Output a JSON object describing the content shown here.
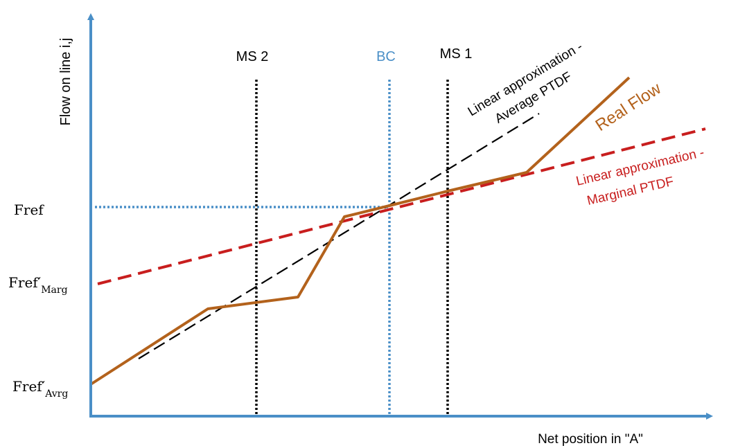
{
  "axes": {
    "y_label": "Flow on line i,j",
    "x_label": "Net position in \"A\""
  },
  "y_ticks": [
    {
      "base": "Fref",
      "sub": ""
    },
    {
      "base": "Fref′",
      "sub": "Marg"
    },
    {
      "base": "Fref′",
      "sub": "Avrg"
    }
  ],
  "vertical_markers": [
    {
      "label": "MS 2",
      "color": "#000000"
    },
    {
      "label": "BC",
      "color": "#4a8fc7"
    },
    {
      "label": "MS 1",
      "color": "#000000"
    }
  ],
  "series": [
    {
      "name": "Real Flow",
      "color": "#b3621c"
    },
    {
      "name_line1": "Linear approximation -",
      "name_line2": "Average PTDF",
      "color": "#000000"
    },
    {
      "name_line1": "Linear approximation -",
      "name_line2": "Marginal PTDF",
      "color": "#c81e1e"
    }
  ],
  "colors": {
    "axis": "#4a8fc7",
    "ref_line": "#4a8fc7"
  }
}
